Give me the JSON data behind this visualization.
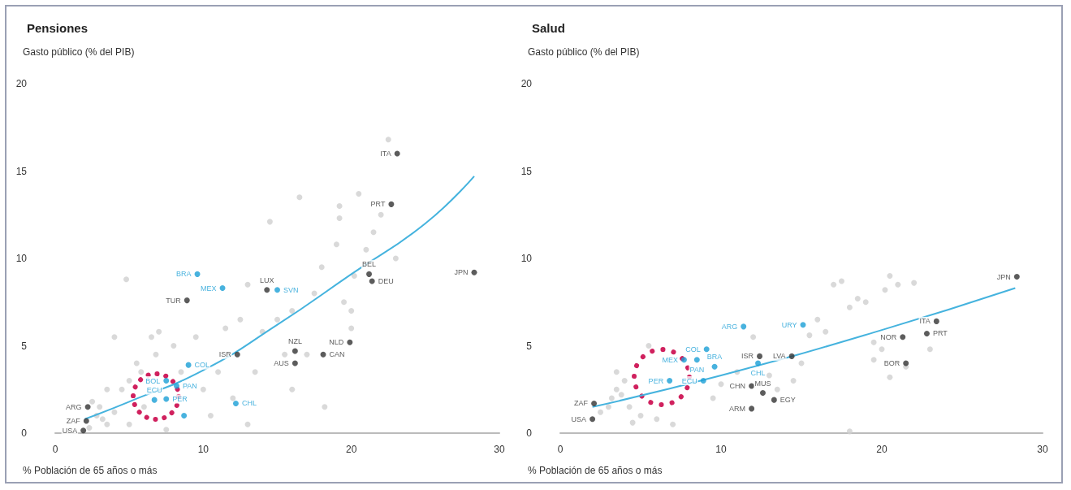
{
  "chart_data": [
    {
      "type": "scatter",
      "title": "Pensiones",
      "ylabel": "Gasto público (% del PIB)",
      "xlabel": "% Población de 65 años o más",
      "xlim": [
        0,
        30
      ],
      "xticks": [
        0,
        10,
        20,
        30
      ],
      "ylim": [
        0,
        20
      ],
      "yticks": [
        0,
        5,
        10,
        15,
        20
      ],
      "grid": false,
      "series": [
        {
          "color": "#cfcfcf",
          "x": [
            4.8,
            2.5,
            3,
            2.8,
            3.5,
            2.3,
            3.2,
            4,
            4.5,
            5,
            5.5,
            6.5,
            7,
            6.8,
            8,
            8.5,
            9,
            10,
            10.5,
            11,
            12,
            13,
            13.5,
            14,
            14.5,
            15,
            16,
            16.5,
            17,
            17.5,
            18,
            18.2,
            19,
            19.2,
            19.2,
            19.5,
            20,
            20,
            20.2,
            20.5,
            21,
            21.5,
            22,
            22.5,
            23,
            15.5,
            16,
            11.5,
            12.5,
            13,
            6,
            5,
            7.5,
            9.5,
            4,
            3.5,
            5.8
          ],
          "values": [
            8.8,
            1.8,
            1.5,
            1,
            0.5,
            0.3,
            0.8,
            1.2,
            2.5,
            3,
            4,
            5.5,
            5.8,
            4.5,
            5,
            3.5,
            null,
            2.5,
            1,
            3.5,
            2,
            0.5,
            3.5,
            5.8,
            12.1,
            6.5,
            7,
            13.5,
            4.5,
            8,
            9.5,
            1.5,
            10.8,
            12.3,
            13,
            7.5,
            6,
            7,
            9,
            13.7,
            10.5,
            11.5,
            12.5,
            16.8,
            10,
            4.5,
            2.5,
            6,
            6.5,
            8.5,
            1.5,
            0.5,
            0.2,
            5.5,
            5.5,
            2.5,
            3.5
          ]
        },
        {
          "color": "#333333",
          "x": [
            23.1,
            22.7,
            28.3,
            21.2,
            21.4,
            14.3,
            8.9,
            16.2,
            16.2,
            18.1,
            19.9,
            12.3,
            2.2,
            2.1,
            1.9
          ],
          "values": [
            16,
            13.1,
            9.2,
            9.1,
            8.7,
            8.2,
            7.6,
            4.7,
            4,
            4.5,
            5.2,
            4.5,
            1.5,
            0.7,
            0.15
          ],
          "value_labels": [
            "ITA",
            "PRT",
            "JPN",
            "BEL",
            "DEU",
            "LUX",
            "TUR",
            "NZL",
            "AUS",
            "CAN",
            "NLD",
            "ISR",
            "ARG",
            "ZAF",
            "USA"
          ]
        },
        {
          "color": "#1a9fd6",
          "x": [
            9.6,
            11.3,
            15,
            9,
            7.5,
            8.2,
            6.7,
            7.5,
            8.7,
            12.2
          ],
          "values": [
            9.1,
            8.3,
            8.2,
            3.9,
            3,
            2.7,
            1.9,
            1.95,
            1,
            1.7
          ],
          "value_labels": [
            "BRA",
            "MEX",
            "SVN",
            "COL",
            "BOL",
            "PAN",
            "ECU",
            "PER",
            null,
            "CHL"
          ]
        },
        {
          "type": "line",
          "color": "#45b3de",
          "x": [
            2,
            5,
            10,
            15,
            20,
            25,
            28.3
          ],
          "values": [
            0.8,
            1.8,
            3.6,
            6.2,
            9.1,
            12,
            14.7
          ]
        }
      ]
    },
    {
      "type": "scatter",
      "title": "Salud",
      "ylabel": "Gasto público (% del PIB)",
      "xlabel": "% Población de 65 años o más",
      "xlim": [
        0,
        30
      ],
      "xticks": [
        0,
        10,
        20,
        30
      ],
      "ylim": [
        0,
        20
      ],
      "yticks": [
        0,
        5,
        10,
        15,
        20
      ],
      "grid": false,
      "series": [
        {
          "color": "#cfcfcf",
          "x": [
            2.5,
            3,
            3.2,
            3.5,
            4,
            3.8,
            4.3,
            4.5,
            5,
            5.5,
            3.5,
            6,
            7,
            9.5,
            10,
            11,
            12,
            13,
            13.5,
            14.5,
            15,
            15.5,
            16,
            16.5,
            17,
            17.5,
            18,
            18.5,
            19,
            19.5,
            20,
            20.5,
            20.2,
            21,
            22,
            23,
            21.5,
            20.5,
            19.5,
            18
          ],
          "values": [
            1.2,
            1.5,
            2,
            2.5,
            3,
            2.2,
            1.5,
            0.6,
            1,
            5,
            3.5,
            0.8,
            0.5,
            2,
            2.8,
            3.5,
            5.5,
            3.3,
            2.5,
            3,
            4,
            5.6,
            6.5,
            5.8,
            8.5,
            8.7,
            7.2,
            7.7,
            7.5,
            4.2,
            4.8,
            9,
            8.2,
            8.5,
            8.6,
            4.8,
            3.8,
            3.2,
            5.2,
            0.1
          ]
        },
        {
          "color": "#333333",
          "x": [
            28.4,
            23.4,
            22.8,
            21.3,
            21.5,
            14.4,
            12.4,
            11.9,
            12.6,
            13.3,
            11.9,
            2.1,
            2
          ],
          "values": [
            8.95,
            6.4,
            5.7,
            5.5,
            4,
            4.4,
            4.4,
            2.7,
            2.3,
            1.9,
            1.4,
            1.7,
            0.8
          ],
          "value_labels": [
            "JPN",
            "ITA",
            "PRT",
            "NOR",
            "BOR",
            "LVA",
            "ISR",
            "CHN",
            "MUS",
            "EGY",
            "ARM",
            "ZAF",
            "USA"
          ]
        },
        {
          "color": "#1a9fd6",
          "x": [
            11.4,
            15.1,
            9.1,
            8.5,
            9.6,
            6.8,
            7.7,
            8.9,
            12.3
          ],
          "values": [
            6.1,
            6.2,
            4.8,
            4.2,
            3.8,
            3,
            4.2,
            3,
            4
          ],
          "value_labels": [
            "ARG",
            "URY",
            "COL",
            "PAN",
            "BRA",
            "PER",
            "MEX",
            "ECU",
            "CHL"
          ]
        },
        {
          "type": "line",
          "color": "#45b3de",
          "x": [
            2,
            10,
            20,
            28.3
          ],
          "values": [
            1.5,
            3.3,
            5.9,
            8.3
          ]
        }
      ]
    }
  ]
}
